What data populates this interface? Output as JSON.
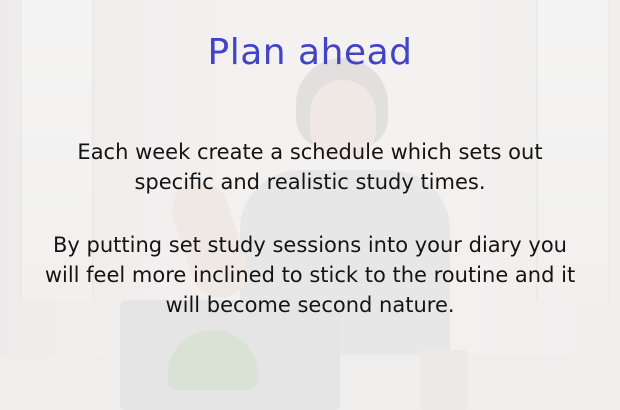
{
  "slide": {
    "title": "Plan ahead",
    "paragraph_1": "Each week create a schedule which sets out specific and realistic study times.",
    "paragraph_2": "By putting set study sessions into your diary you will feel more inclined to stick to the routine and it will become second nature.",
    "colors": {
      "title": "#4244c8",
      "body_text": "#141414",
      "overlay": "#f4f3f2"
    },
    "background_image": "faded-photo-woman-at-laptop"
  }
}
